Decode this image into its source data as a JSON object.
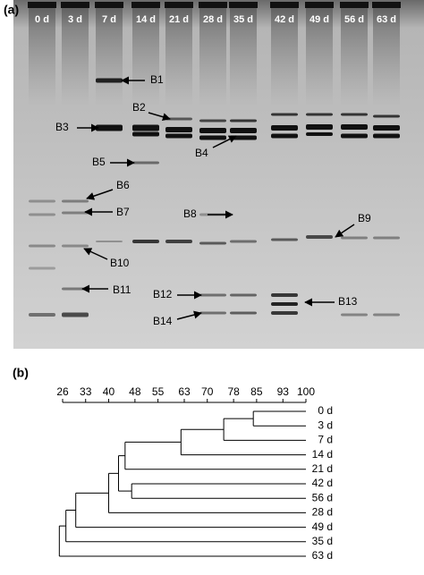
{
  "panel_a": {
    "label": "(a)",
    "lanes": [
      "0 d",
      "3 d",
      "7 d",
      "14 d",
      "21 d",
      "28 d",
      "35 d",
      "42 d",
      "49 d",
      "56 d",
      "63 d"
    ],
    "bands": [
      "B1",
      "B2",
      "B3",
      "B4",
      "B5",
      "B6",
      "B7",
      "B8",
      "B9",
      "B10",
      "B11",
      "B12",
      "B13",
      "B14"
    ]
  },
  "panel_b": {
    "label": "(b)",
    "xlim": [
      26,
      100
    ],
    "xticks": [
      26,
      33,
      40,
      48,
      55,
      63,
      70,
      78,
      85,
      93,
      100
    ],
    "tree": {
      "height": 25,
      "children": [
        {
          "height": 27,
          "children": [
            {
              "height": 30,
              "children": [
                {
                  "height": 40,
                  "children": [
                    {
                      "height": 43,
                      "children": [
                        {
                          "height": 45,
                          "children": [
                            {
                              "height": 62,
                              "children": [
                                {
                                  "height": 75,
                                  "children": [
                                    {
                                      "height": 84,
                                      "children": [
                                        {
                                          "label": "0 d"
                                        },
                                        {
                                          "label": "3 d"
                                        }
                                      ]
                                    },
                                    {
                                      "label": "7 d"
                                    }
                                  ]
                                },
                                {
                                  "label": "14 d"
                                }
                              ]
                            },
                            {
                              "label": "21 d"
                            }
                          ]
                        },
                        {
                          "height": 47,
                          "children": [
                            {
                              "label": "42 d"
                            },
                            {
                              "label": "56 d"
                            }
                          ]
                        }
                      ]
                    },
                    {
                      "label": "28 d"
                    }
                  ]
                },
                {
                  "label": "49 d"
                }
              ]
            },
            {
              "label": "35 d"
            }
          ]
        },
        {
          "label": "63 d"
        }
      ]
    }
  }
}
